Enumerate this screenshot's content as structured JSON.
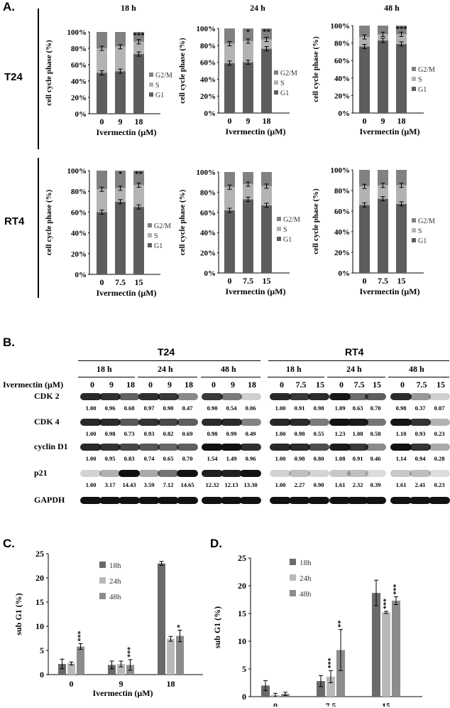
{
  "panels": {
    "A": "A.",
    "B": "B.",
    "C": "C.",
    "D": "D."
  },
  "row_labels": {
    "t24": "T24",
    "rt4": "RT4"
  },
  "phase_legend": [
    "G2/M",
    "S",
    "G1"
  ],
  "colors": {
    "g1": "#5d5d5d",
    "s": "#b3b3b3",
    "g2m": "#818181",
    "bar18": "#6a6a6a",
    "bar24": "#b9b9b9",
    "bar48": "#8c8c8c"
  },
  "chart_data": [
    {
      "type": "bar",
      "stacked": true,
      "title": "18 h",
      "ylabel": "cell cycle phase (%)",
      "xlabel": "Ivermectin  (μM)",
      "categories": [
        "0",
        "9",
        "18"
      ],
      "ylim": [
        0,
        100
      ],
      "series": [
        {
          "name": "G1",
          "values": [
            50,
            52,
            73
          ]
        },
        {
          "name": "S",
          "values": [
            30,
            30,
            15
          ]
        },
        {
          "name": "G2/M",
          "values": [
            20,
            18,
            12
          ]
        }
      ],
      "annotations": [
        "",
        "",
        "***"
      ]
    },
    {
      "type": "bar",
      "stacked": true,
      "title": "24 h",
      "ylabel": "cell cycle phase (%)",
      "xlabel": "Ivermectin  (μM)",
      "categories": [
        "0",
        "9",
        "18"
      ],
      "ylim": [
        0,
        100
      ],
      "series": [
        {
          "name": "G1",
          "values": [
            59,
            60,
            76
          ]
        },
        {
          "name": "S",
          "values": [
            23,
            25,
            11
          ]
        },
        {
          "name": "G2/M",
          "values": [
            18,
            15,
            13
          ]
        }
      ],
      "annotations": [
        "",
        "*",
        "**"
      ]
    },
    {
      "type": "bar",
      "stacked": true,
      "title": "48 h",
      "ylabel": "cell cycle phase (%)",
      "xlabel": "Ivermectin  (μM)",
      "categories": [
        "0",
        "9",
        "18"
      ],
      "ylim": [
        0,
        100
      ],
      "series": [
        {
          "name": "G1",
          "values": [
            76,
            83,
            79
          ]
        },
        {
          "name": "S",
          "values": [
            11,
            7,
            11
          ]
        },
        {
          "name": "G2/M",
          "values": [
            13,
            10,
            10
          ]
        }
      ],
      "annotations": [
        "",
        "",
        "***"
      ]
    },
    {
      "type": "bar",
      "stacked": true,
      "title": "",
      "ylabel": "cell cycle phase (%)",
      "xlabel": "Ivermectin  (μM)",
      "categories": [
        "0",
        "7.5",
        "15"
      ],
      "ylim": [
        0,
        100
      ],
      "series": [
        {
          "name": "G1",
          "values": [
            60,
            70,
            65
          ]
        },
        {
          "name": "S",
          "values": [
            22,
            13,
            21
          ]
        },
        {
          "name": "G2/M",
          "values": [
            18,
            17,
            14
          ]
        }
      ],
      "annotations": [
        "",
        "*",
        "**"
      ]
    },
    {
      "type": "bar",
      "stacked": true,
      "title": "",
      "ylabel": "cell cycle phase (%)",
      "xlabel": "Ivermectin  (μM)",
      "categories": [
        "0",
        "7.5",
        "15"
      ],
      "ylim": [
        0,
        100
      ],
      "series": [
        {
          "name": "G1",
          "values": [
            62,
            73,
            67
          ]
        },
        {
          "name": "S",
          "values": [
            23,
            15,
            19
          ]
        },
        {
          "name": "G2/M",
          "values": [
            15,
            12,
            14
          ]
        }
      ],
      "annotations": [
        "",
        "",
        ""
      ]
    },
    {
      "type": "bar",
      "stacked": true,
      "title": "",
      "ylabel": "cell cycle phase (%)",
      "xlabel": "Ivermectin  (μM)",
      "categories": [
        "0",
        "7.5",
        "15"
      ],
      "ylim": [
        0,
        100
      ],
      "series": [
        {
          "name": "G1",
          "values": [
            66,
            72,
            67
          ]
        },
        {
          "name": "S",
          "values": [
            18,
            13,
            18
          ]
        },
        {
          "name": "G2/M",
          "values": [
            16,
            15,
            15
          ]
        }
      ],
      "annotations": [
        "",
        "",
        ""
      ]
    },
    {
      "type": "bar",
      "title": "",
      "ylabel": "sub G1  (%)",
      "xlabel": "Ivermectin  (μM)",
      "categories": [
        "0",
        "9",
        "18"
      ],
      "ylim": [
        0,
        25
      ],
      "yticks": [
        0,
        5,
        10,
        15,
        20,
        25
      ],
      "series": [
        {
          "name": "18h",
          "values": [
            2.2,
            2.0,
            23.0
          ],
          "errors": [
            1.0,
            0.8,
            0.4
          ]
        },
        {
          "name": "24h",
          "values": [
            2.3,
            2.2,
            7.4
          ],
          "errors": [
            0.3,
            0.6,
            0.5
          ]
        },
        {
          "name": "48h",
          "values": [
            5.8,
            2.0,
            8.0
          ],
          "errors": [
            0.6,
            1.1,
            1.2
          ]
        }
      ],
      "annotations": [
        [
          "",
          "",
          ""
        ],
        [
          "",
          "",
          ""
        ],
        [
          "***",
          "***",
          "*"
        ]
      ]
    },
    {
      "type": "bar",
      "title": "",
      "ylabel": "sub G1  (%)",
      "xlabel": "Ivermectin  (μM)",
      "categories": [
        "0",
        "7.5",
        "15"
      ],
      "ylim": [
        0,
        25
      ],
      "yticks": [
        0,
        5,
        10,
        15,
        20,
        25
      ],
      "series": [
        {
          "name": "18h",
          "values": [
            2.0,
            2.8,
            18.7
          ],
          "errors": [
            0.9,
            1.0,
            2.3
          ]
        },
        {
          "name": "24h",
          "values": [
            0.3,
            3.6,
            15.2
          ],
          "errors": [
            0.3,
            1.1,
            0.2
          ]
        },
        {
          "name": "48h",
          "values": [
            0.5,
            8.4,
            17.3
          ],
          "errors": [
            0.3,
            3.7,
            0.7
          ]
        }
      ],
      "annotations": [
        [
          "",
          "",
          ""
        ],
        [
          "",
          "***",
          "***"
        ],
        [
          "",
          "**",
          "***"
        ]
      ]
    }
  ],
  "western": {
    "headers": {
      "t24": "T24",
      "rt4": "RT4"
    },
    "dose_label": "Ivermectin (μM)",
    "times": [
      "18 h",
      "24 h",
      "48 h",
      "18 h",
      "24 h",
      "48 h"
    ],
    "doses": [
      [
        "0",
        "9",
        "18"
      ],
      [
        "0",
        "9",
        "18"
      ],
      [
        "0",
        "9",
        "18"
      ],
      [
        "0",
        "7.5",
        "15"
      ],
      [
        "0",
        "7.5",
        "15"
      ],
      [
        "0",
        "7.5",
        "15"
      ]
    ],
    "proteins": [
      "CDK 2",
      "CDK 4",
      "cyclin D1",
      "p21",
      "GAPDH"
    ],
    "quant": {
      "CDK 2": [
        [
          "1.00",
          "0.96",
          "0.68"
        ],
        [
          "0.97",
          "0.90",
          "0.47"
        ],
        [
          "0.90",
          "0.54",
          "0.06"
        ],
        [
          "1.00",
          "0.91",
          "0.98"
        ],
        [
          "1.09",
          "0.63",
          "0.70"
        ],
        [
          "0.98",
          "0.37",
          "0.07"
        ]
      ],
      "CDK 4": [
        [
          "1.00",
          "0.98",
          "0.73"
        ],
        [
          "0.93",
          "0.82",
          "0.69"
        ],
        [
          "0.98",
          "0.99",
          "0.49"
        ],
        [
          "1.00",
          "0.98",
          "0.55"
        ],
        [
          "1.23",
          "1.08",
          "0.58"
        ],
        [
          "1.10",
          "0.93",
          "0.23"
        ]
      ],
      "cyclin D1": [
        [
          "1.00",
          "0.95",
          "0.83"
        ],
        [
          "0.74",
          "0.65",
          "0.70"
        ],
        [
          "1.54",
          "1.49",
          "0.96"
        ],
        [
          "1.00",
          "0.98",
          "0.80"
        ],
        [
          "1.08",
          "0.91",
          "0.46"
        ],
        [
          "1.14",
          "0.94",
          "0.28"
        ]
      ],
      "p21": [
        [
          "1.00",
          "3.17",
          "14.43"
        ],
        [
          "3.59",
          "7.12",
          "14.65"
        ],
        [
          "12.32",
          "12.13",
          "13.30"
        ],
        [
          "1.00",
          "2.27",
          "0.90"
        ],
        [
          "1.61",
          "2.32",
          "0.39"
        ],
        [
          "1.61",
          "2.41",
          "0.23"
        ]
      ]
    }
  }
}
